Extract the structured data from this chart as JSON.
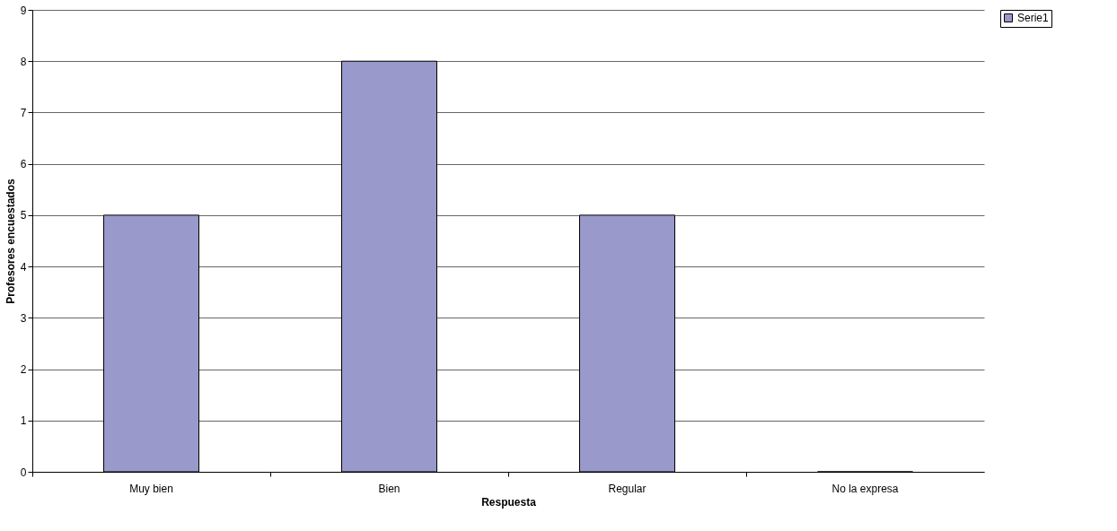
{
  "chart_data": {
    "type": "bar",
    "xlabel": "Respuesta",
    "ylabel": "Profesores encuestados",
    "categories": [
      "Muy bien",
      "Bien",
      "Regular",
      "No la expresa"
    ],
    "series": [
      {
        "name": "Serie1",
        "color": "#9999cc",
        "values": [
          5,
          8,
          5,
          0
        ]
      }
    ],
    "ylim": [
      0,
      9
    ],
    "yticks": [
      0,
      1,
      2,
      3,
      4,
      5,
      6,
      7,
      8,
      9
    ],
    "grid": "y",
    "legend": "right"
  }
}
